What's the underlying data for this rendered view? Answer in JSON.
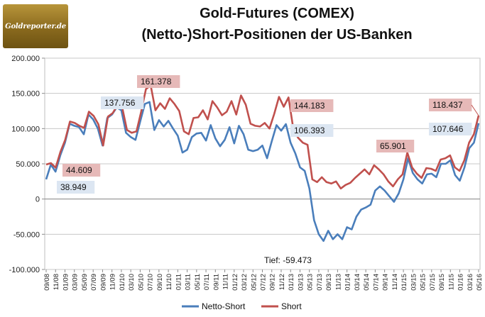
{
  "logo": {
    "text": "Goldreporter.de"
  },
  "chart_data": {
    "type": "line",
    "title": "Gold-Futures (COMEX)",
    "subtitle": "(Netto-)Short-Positionen der US-Banken",
    "xlabel": "",
    "ylabel": "",
    "ylim": [
      -100000,
      200000
    ],
    "y_ticks": [
      200000,
      150000,
      100000,
      50000,
      0,
      -50000,
      -100000
    ],
    "y_tick_labels": [
      "200.000",
      "150.000",
      "100.000",
      "50.000",
      "0",
      "-50.000",
      "-100.000"
    ],
    "x_tick_labels": [
      "09/08",
      "11/08",
      "01/09",
      "03/09",
      "05/09",
      "07/09",
      "09/09",
      "11/09",
      "01/10",
      "03/10",
      "05/10",
      "07/10",
      "09/10",
      "11/10",
      "01/11",
      "03/11",
      "05/11",
      "07/11",
      "09/11",
      "11/11",
      "01/12",
      "03/12",
      "05/12",
      "07/12",
      "09/12",
      "11/12",
      "01/13",
      "03/13",
      "05/13",
      "07/13",
      "09/13",
      "11/13",
      "01/14",
      "03/14",
      "05/14",
      "07/14",
      "09/14",
      "11/14",
      "01/15",
      "03/15",
      "05/15",
      "07/15",
      "09/15",
      "11/15",
      "01/16",
      "03/16",
      "05/16"
    ],
    "grid": true,
    "legend_position": "bottom",
    "series": [
      {
        "name": "Netto-Short",
        "color": "#4a7ebb",
        "values": [
          28000,
          49000,
          38949,
          62000,
          80000,
          107000,
          104000,
          102000,
          92000,
          120000,
          113000,
          100000,
          76000,
          115000,
          120000,
          130000,
          126000,
          94000,
          88000,
          84000,
          110000,
          135000,
          137756,
          98000,
          112000,
          103000,
          111000,
          100000,
          90000,
          66000,
          70000,
          88000,
          93000,
          94000,
          83000,
          105000,
          86000,
          75000,
          84000,
          102000,
          79000,
          104000,
          92000,
          70000,
          68000,
          70000,
          76000,
          58000,
          82000,
          105000,
          97000,
          106393,
          80000,
          65000,
          45000,
          40000,
          15000,
          -30000,
          -50000,
          -59473,
          -45000,
          -57000,
          -50000,
          -57000,
          -40000,
          -43000,
          -25000,
          -15000,
          -12000,
          -8000,
          12000,
          18000,
          12000,
          4000,
          -4000,
          8000,
          28000,
          58000,
          37000,
          28000,
          22000,
          35000,
          36000,
          31000,
          50000,
          50000,
          55000,
          34000,
          26000,
          45000,
          72000,
          80000,
          107646
        ]
      },
      {
        "name": "Short",
        "color": "#c0504d",
        "values": [
          49000,
          51000,
          44609,
          67000,
          84000,
          110000,
          108000,
          104000,
          101000,
          124000,
          118000,
          106000,
          76000,
          117000,
          122000,
          133000,
          130000,
          98000,
          94000,
          96000,
          124000,
          156000,
          161378,
          126000,
          136000,
          128000,
          143000,
          135000,
          125000,
          96000,
          92000,
          115000,
          116000,
          126000,
          113000,
          139000,
          130000,
          119000,
          124000,
          139000,
          120000,
          147000,
          134000,
          107000,
          104000,
          103000,
          108000,
          100000,
          121000,
          145000,
          131000,
          144183,
          100000,
          87000,
          80000,
          77000,
          28000,
          24000,
          31000,
          24000,
          22000,
          25000,
          15000,
          20000,
          23000,
          30000,
          36000,
          42000,
          35000,
          48000,
          42000,
          35000,
          25000,
          18000,
          28000,
          35000,
          65901,
          45000,
          36000,
          30000,
          44000,
          43000,
          40000,
          56000,
          58000,
          62000,
          45000,
          40000,
          55000,
          80000,
          92000,
          118437
        ]
      }
    ],
    "annotations": [
      {
        "text": "44.609",
        "series": "Short",
        "style": "red"
      },
      {
        "text": "38.949",
        "series": "Netto-Short",
        "style": "blue"
      },
      {
        "text": "137.756",
        "series": "Netto-Short",
        "style": "blue"
      },
      {
        "text": "161.378",
        "series": "Short",
        "style": "red"
      },
      {
        "text": "144.183",
        "series": "Short",
        "style": "red"
      },
      {
        "text": "106.393",
        "series": "Netto-Short",
        "style": "blue"
      },
      {
        "text": "Tief: -59.473",
        "series": "Netto-Short",
        "style": "plain"
      },
      {
        "text": "65.901",
        "series": "Short",
        "style": "red"
      },
      {
        "text": "107.646",
        "series": "Netto-Short",
        "style": "blue"
      },
      {
        "text": "118.437",
        "series": "Short",
        "style": "red"
      }
    ],
    "label_colors": {
      "red_bg": "#e6b9b8",
      "blue_bg": "#dce6f2"
    }
  }
}
